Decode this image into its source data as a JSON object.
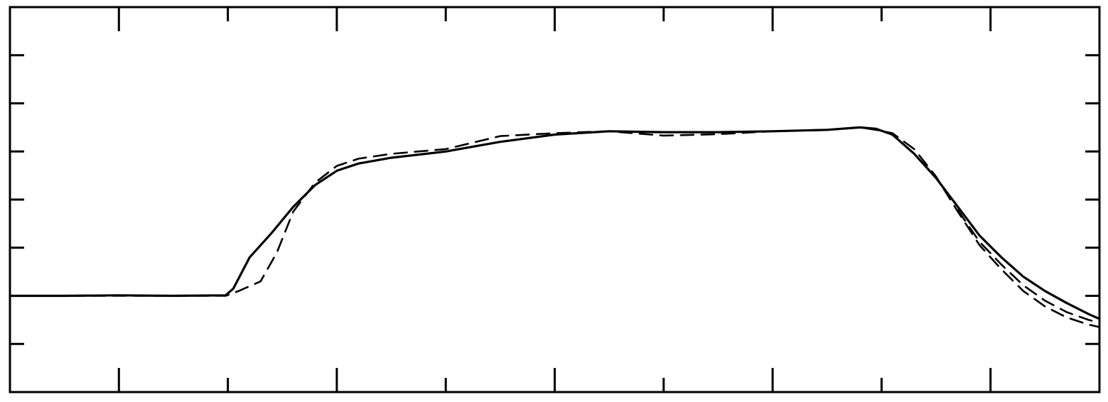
{
  "chart_data": {
    "type": "line",
    "title": "",
    "xlabel": "",
    "ylabel": "",
    "xlim": [
      0,
      10
    ],
    "ylim": [
      0,
      8
    ],
    "x_ticks": [
      0,
      1,
      2,
      3,
      4,
      5,
      6,
      7,
      8,
      9,
      10
    ],
    "y_ticks": [
      0,
      1,
      2,
      3,
      4,
      5,
      6,
      7,
      8
    ],
    "tick_labels_shown": false,
    "grid": false,
    "legend": "none",
    "series": [
      {
        "style": "solid",
        "color": "#000000",
        "x": [
          0,
          0.5,
          1,
          1.5,
          1.98,
          2.05,
          2.2,
          2.4,
          2.6,
          2.8,
          3.0,
          3.2,
          3.5,
          4.0,
          4.5,
          5.0,
          5.5,
          6.0,
          6.5,
          7.0,
          7.5,
          7.8,
          7.95,
          8.1,
          8.3,
          8.5,
          8.7,
          8.9,
          9.1,
          9.3,
          9.5,
          9.7,
          9.9,
          10.0
        ],
        "y": [
          2.0,
          2.0,
          2.01,
          2.0,
          2.01,
          2.15,
          2.8,
          3.3,
          3.85,
          4.3,
          4.6,
          4.75,
          4.87,
          5.0,
          5.2,
          5.35,
          5.42,
          5.4,
          5.4,
          5.42,
          5.45,
          5.5,
          5.47,
          5.35,
          4.95,
          4.45,
          3.85,
          3.25,
          2.8,
          2.4,
          2.1,
          1.85,
          1.62,
          1.52
        ]
      },
      {
        "style": "dashed",
        "color": "#000000",
        "x": [
          0,
          0.5,
          1,
          1.5,
          1.98,
          2.1,
          2.3,
          2.45,
          2.6,
          2.8,
          3.0,
          3.2,
          3.5,
          4.0,
          4.5,
          5.0,
          5.5,
          6.0,
          6.5,
          7.0,
          7.5,
          7.8,
          7.95,
          8.1,
          8.3,
          8.5,
          8.7,
          8.9,
          9.1,
          9.3,
          9.5,
          9.7,
          9.9,
          10.0
        ],
        "y": [
          2.0,
          2.0,
          2.0,
          2.0,
          2.0,
          2.1,
          2.3,
          2.9,
          3.75,
          4.35,
          4.7,
          4.85,
          4.95,
          5.05,
          5.32,
          5.38,
          5.42,
          5.33,
          5.36,
          5.42,
          5.45,
          5.5,
          5.45,
          5.38,
          5.05,
          4.48,
          3.75,
          3.05,
          2.55,
          2.1,
          1.78,
          1.55,
          1.4,
          1.35
        ]
      },
      {
        "style": "dashed",
        "color": "#000000",
        "x": [
          8.7,
          8.9,
          9.1,
          9.3,
          9.5,
          9.7,
          9.9,
          10.0
        ],
        "y": [
          3.78,
          3.12,
          2.65,
          2.22,
          1.9,
          1.66,
          1.5,
          1.44
        ]
      }
    ]
  }
}
